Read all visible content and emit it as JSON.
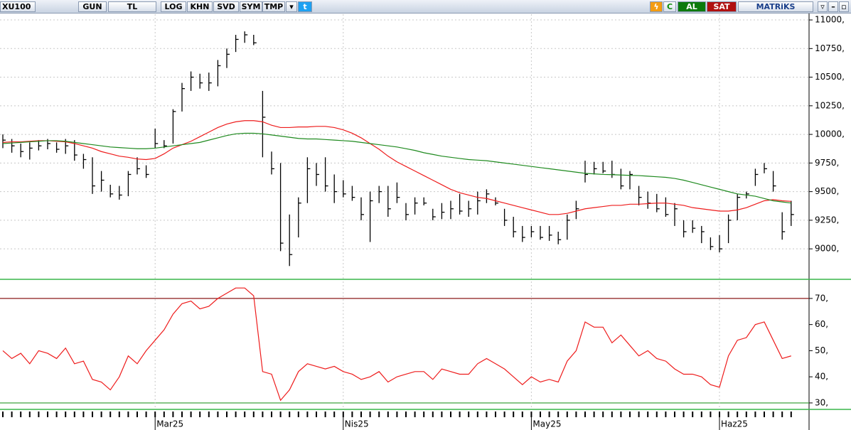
{
  "toolbar": {
    "symbol": "XU100",
    "buttons": [
      "GUN",
      "TL",
      "LOG",
      "KHN",
      "SVD",
      "SYM",
      "TMP"
    ],
    "right_buttons": [
      "C",
      "AL",
      "SAT",
      "MATRiKS"
    ]
  },
  "chart_data": [
    {
      "type": "ohlc",
      "categories": [
        null,
        null,
        null,
        null,
        null,
        null,
        null,
        null,
        null,
        null,
        null,
        null,
        null,
        null,
        null,
        null,
        null,
        "Mar25",
        null,
        null,
        null,
        null,
        null,
        null,
        null,
        null,
        null,
        null,
        null,
        null,
        null,
        null,
        null,
        null,
        null,
        null,
        null,
        null,
        "Nis25",
        null,
        null,
        null,
        null,
        null,
        null,
        null,
        null,
        null,
        null,
        null,
        null,
        null,
        null,
        null,
        null,
        null,
        null,
        null,
        null,
        "May25",
        null,
        null,
        null,
        null,
        null,
        null,
        null,
        null,
        null,
        null,
        null,
        null,
        null,
        null,
        null,
        null,
        null,
        null,
        null,
        null,
        "Haz25",
        null,
        null,
        null,
        null,
        null,
        null,
        null,
        null
      ],
      "high": [
        10000,
        9960,
        9920,
        9930,
        9950,
        9960,
        9930,
        9960,
        9950,
        9830,
        9800,
        9680,
        9560,
        9550,
        9680,
        9800,
        9730,
        10050,
        9950,
        10220,
        10450,
        10550,
        10530,
        10540,
        10650,
        10750,
        10870,
        10900,
        10870,
        10380,
        9850,
        9750,
        9300,
        9450,
        9800,
        9750,
        9800,
        9650,
        9600,
        9550,
        9450,
        9500,
        9550,
        9550,
        9580,
        9400,
        9450,
        9450,
        9350,
        9400,
        9420,
        9480,
        9420,
        9500,
        9520,
        9450,
        9350,
        9280,
        9200,
        9200,
        9200,
        9200,
        9150,
        9300,
        9420,
        9770,
        9760,
        9760,
        9770,
        9700,
        9680,
        9550,
        9500,
        9480,
        9450,
        9400,
        9250,
        9250,
        9200,
        9100,
        9120,
        9300,
        9480,
        9500,
        9700,
        9750,
        9680,
        9320,
        9420
      ],
      "low": [
        9880,
        9840,
        9800,
        9780,
        9860,
        9870,
        9840,
        9830,
        9770,
        9700,
        9480,
        9500,
        9450,
        9430,
        9460,
        9650,
        9620,
        9880,
        9880,
        9920,
        10200,
        10380,
        10400,
        10380,
        10420,
        10580,
        10720,
        10800,
        10780,
        9800,
        9650,
        8980,
        8850,
        9100,
        9400,
        9550,
        9500,
        9400,
        9450,
        9420,
        9250,
        9060,
        9400,
        9280,
        9400,
        9250,
        9300,
        9380,
        9250,
        9260,
        9260,
        9300,
        9280,
        9300,
        9400,
        9380,
        9200,
        9100,
        9060,
        9100,
        9080,
        9070,
        9040,
        9080,
        9260,
        9580,
        9650,
        9660,
        9620,
        9520,
        9520,
        9380,
        9350,
        9320,
        9280,
        9200,
        9100,
        9140,
        9050,
        8990,
        8970,
        9050,
        9250,
        9440,
        9550,
        9660,
        9500,
        9080,
        9200
      ],
      "close": [
        9950,
        9900,
        9850,
        9880,
        9900,
        9920,
        9870,
        9900,
        9820,
        9780,
        9550,
        9600,
        9480,
        9470,
        9650,
        9700,
        9650,
        9920,
        9900,
        10200,
        10400,
        10500,
        10450,
        10450,
        10600,
        10700,
        10830,
        10870,
        10800,
        10150,
        9700,
        9050,
        8950,
        9400,
        9700,
        9650,
        9550,
        9500,
        9480,
        9450,
        9300,
        9420,
        9500,
        9350,
        9450,
        9300,
        9400,
        9400,
        9280,
        9320,
        9350,
        9330,
        9350,
        9420,
        9480,
        9400,
        9250,
        9150,
        9100,
        9150,
        9100,
        9120,
        9080,
        9250,
        9350,
        9650,
        9700,
        9680,
        9650,
        9550,
        9650,
        9450,
        9400,
        9350,
        9300,
        9350,
        9150,
        9180,
        9150,
        9020,
        9000,
        9250,
        9450,
        9480,
        9650,
        9700,
        9550,
        9150,
        9300
      ],
      "color": "#000000",
      "ma_lines": [
        {
          "color": "#ee1c1c",
          "values": [
            9930,
            9935,
            9935,
            9940,
            9945,
            9945,
            9940,
            9935,
            9920,
            9900,
            9880,
            9850,
            9830,
            9810,
            9800,
            9785,
            9780,
            9790,
            9830,
            9880,
            9910,
            9940,
            9980,
            10020,
            10060,
            10090,
            10110,
            10120,
            10120,
            10110,
            10080,
            10060,
            10060,
            10065,
            10065,
            10070,
            10070,
            10060,
            10040,
            10010,
            9970,
            9920,
            9870,
            9810,
            9760,
            9720,
            9680,
            9640,
            9600,
            9560,
            9520,
            9490,
            9470,
            9450,
            9440,
            9420,
            9400,
            9380,
            9360,
            9340,
            9320,
            9300,
            9300,
            9310,
            9330,
            9350,
            9360,
            9370,
            9380,
            9380,
            9390,
            9390,
            9395,
            9400,
            9400,
            9390,
            9380,
            9360,
            9350,
            9340,
            9330,
            9330,
            9340,
            9360,
            9390,
            9420,
            9430,
            9420,
            9415
          ]
        },
        {
          "color": "#1f8a1f",
          "values": [
            9920,
            9925,
            9930,
            9935,
            9940,
            9945,
            9945,
            9940,
            9930,
            9920,
            9910,
            9900,
            9890,
            9885,
            9880,
            9875,
            9875,
            9880,
            9890,
            9900,
            9910,
            9920,
            9930,
            9950,
            9970,
            9990,
            10005,
            10010,
            10010,
            10005,
            9995,
            9985,
            9975,
            9965,
            9960,
            9960,
            9955,
            9950,
            9945,
            9940,
            9930,
            9920,
            9910,
            9900,
            9890,
            9875,
            9860,
            9840,
            9825,
            9810,
            9800,
            9790,
            9780,
            9775,
            9770,
            9760,
            9750,
            9740,
            9730,
            9720,
            9710,
            9700,
            9690,
            9680,
            9670,
            9660,
            9655,
            9650,
            9648,
            9645,
            9642,
            9640,
            9635,
            9630,
            9625,
            9615,
            9600,
            9580,
            9560,
            9540,
            9520,
            9500,
            9480,
            9470,
            9460,
            9440,
            9420,
            9410,
            9400
          ]
        }
      ],
      "ylim": [
        8740,
        11050
      ],
      "yticks": [
        {
          "value": 9000,
          "label": "9000,"
        },
        {
          "value": 9250,
          "label": "9250,"
        },
        {
          "value": 9500,
          "label": "9500,"
        },
        {
          "value": 9750,
          "label": "9750,"
        },
        {
          "value": 10000,
          "label": "10000,"
        },
        {
          "value": 10250,
          "label": "10250,"
        },
        {
          "value": 10500,
          "label": "10500,"
        },
        {
          "value": 10750,
          "label": "10750,"
        },
        {
          "value": 11000,
          "label": "11000,"
        }
      ],
      "grid": true
    },
    {
      "type": "line",
      "values": [
        50,
        47,
        49,
        45,
        50,
        49,
        47,
        51,
        45,
        46,
        39,
        38,
        35,
        40,
        48,
        45,
        50,
        54,
        58,
        64,
        68,
        69,
        66,
        67,
        70,
        72,
        74,
        74,
        71,
        42,
        41,
        31,
        35,
        42,
        45,
        44,
        43,
        44,
        42,
        41,
        39,
        40,
        42,
        38,
        40,
        41,
        42,
        42,
        39,
        43,
        42,
        41,
        41,
        45,
        47,
        45,
        43,
        40,
        37,
        40,
        38,
        39,
        38,
        46,
        50,
        61,
        59,
        59,
        53,
        56,
        52,
        48,
        50,
        47,
        46,
        43,
        41,
        41,
        40,
        37,
        36,
        48,
        54,
        55,
        60,
        61,
        54,
        47,
        48
      ],
      "color": "#ee1c1c",
      "ylim": [
        27.8,
        76.5
      ],
      "yticks": [
        {
          "value": 30,
          "label": "30,"
        },
        {
          "value": 40,
          "label": "40,"
        },
        {
          "value": 50,
          "label": "50,"
        },
        {
          "value": 60,
          "label": "60,"
        },
        {
          "value": 70,
          "label": "70,"
        }
      ],
      "hlines": [
        {
          "value": 70,
          "color": "#8b1a1a"
        },
        {
          "value": 30,
          "color": "#2a9a2a"
        }
      ]
    }
  ]
}
